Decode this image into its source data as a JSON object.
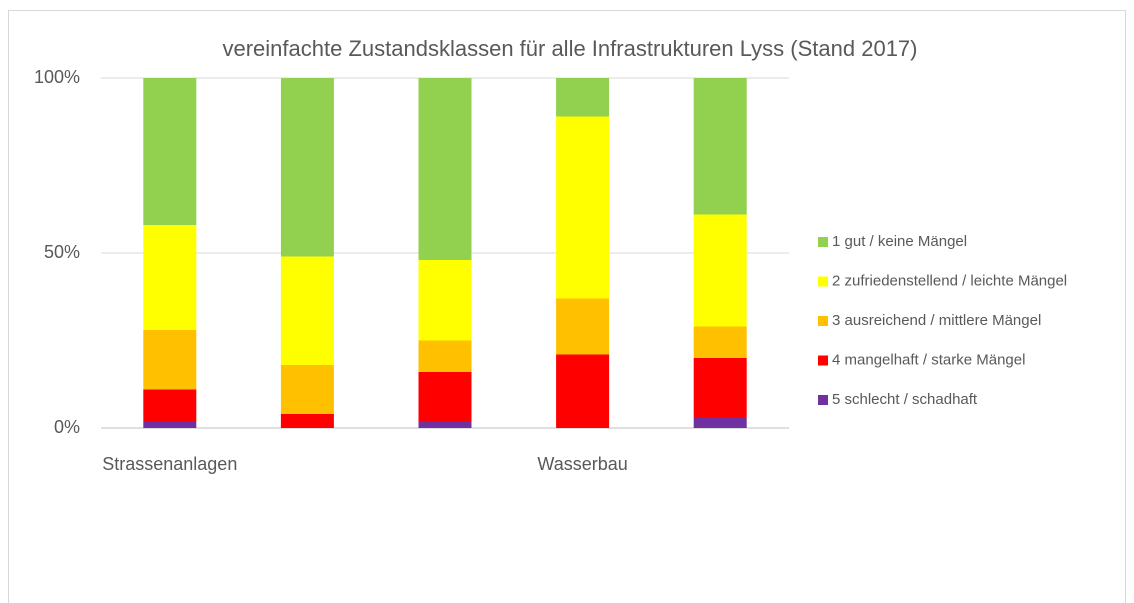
{
  "chart_data": {
    "type": "stacked_bar",
    "title": "vereinfachte Zustandsklassen für alle Infrastrukturen Lyss (Stand 2017)",
    "categories": [
      "Strassenanlagen",
      null,
      null,
      "Wasserbau",
      null
    ],
    "series": [
      {
        "name": "1 gut / keine Mängel",
        "color": "#92d050",
        "values": [
          42,
          51,
          52,
          11,
          39
        ]
      },
      {
        "name": "2 zufriedenstellend / leichte Mängel",
        "color": "#ffff00",
        "values": [
          30,
          31,
          23,
          52,
          32
        ]
      },
      {
        "name": "3 ausreichend / mittlere Mängel",
        "color": "#ffc000",
        "values": [
          17,
          14,
          9,
          16,
          9
        ]
      },
      {
        "name": "4 mangelhaft / starke Mängel",
        "color": "#ff0000",
        "values": [
          9,
          4,
          14,
          21,
          17
        ]
      },
      {
        "name": "5 schlecht / schadhaft",
        "color": "#7030a0",
        "values": [
          2,
          0,
          2,
          0,
          3
        ]
      }
    ],
    "ylim": [
      0,
      100
    ],
    "yticks": [
      {
        "value": 0,
        "label": "0%"
      },
      {
        "value": 50,
        "label": "50%"
      },
      {
        "value": 100,
        "label": "100%"
      }
    ],
    "grid": true,
    "legend": "right"
  }
}
